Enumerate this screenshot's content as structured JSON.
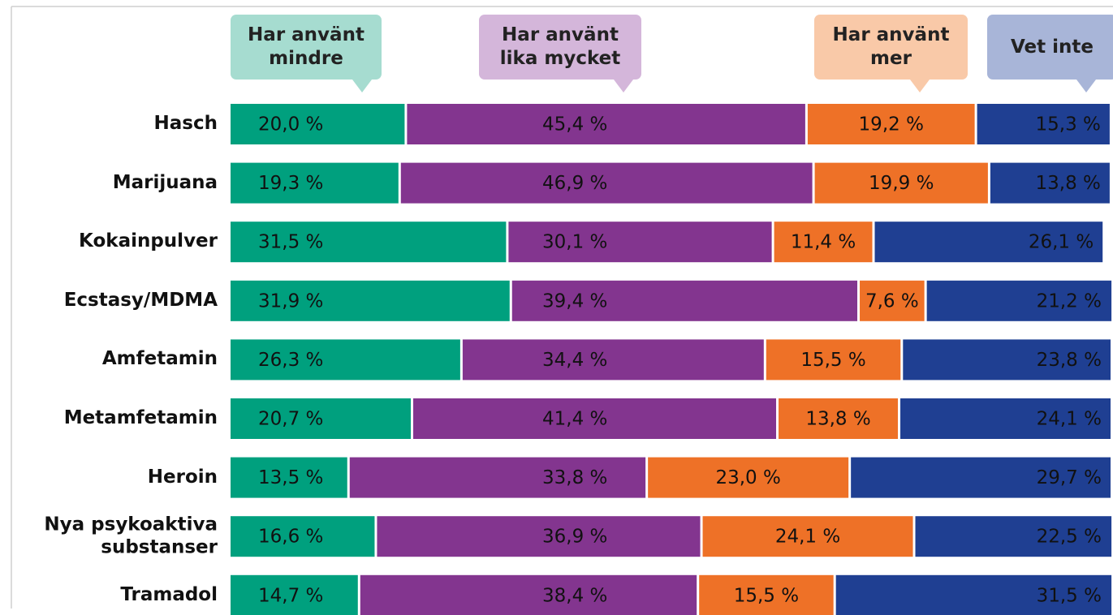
{
  "chart_data": {
    "type": "stacked-bar-horizontal",
    "categories": [
      "Hasch",
      "Marijuana",
      "Kokainpulver",
      "Ecstasy/MDMA",
      "Amfetamin",
      "Metamfetamin",
      "Heroin",
      "Nya psykoaktiva substanser",
      "Tramadol"
    ],
    "xlim": [
      0,
      100
    ],
    "series": [
      {
        "name": "Har använt mindre",
        "color": "#00a07e",
        "legend_color": "#a6dcd0",
        "values": [
          20.0,
          19.3,
          31.5,
          31.9,
          26.3,
          20.7,
          13.5,
          16.6,
          14.7
        ],
        "value_labels": [
          "20,0 %",
          "19,3 %",
          "31,5 %",
          "31,9 %",
          "26,3 %",
          "20,7 %",
          "13,5 %",
          "16,6 %",
          "14,7 %"
        ]
      },
      {
        "name": "Har använt lika mycket",
        "color": "#83358f",
        "legend_color": "#d4b6da",
        "values": [
          45.4,
          46.9,
          30.1,
          39.4,
          34.4,
          41.4,
          33.8,
          36.9,
          38.4
        ],
        "value_labels": [
          "45,4 %",
          "46,9 %",
          "30,1 %",
          "39,4 %",
          "34,4 %",
          "41,4 %",
          "33,8 %",
          "36,9 %",
          "38,4 %"
        ]
      },
      {
        "name": "Har använt mer",
        "color": "#ee7127",
        "legend_color": "#f9c9a8",
        "values": [
          19.2,
          19.9,
          11.4,
          7.6,
          15.5,
          13.8,
          23.0,
          24.1,
          15.5
        ],
        "value_labels": [
          "19,2 %",
          "19,9 %",
          "11,4 %",
          "7,6 %",
          "15,5 %",
          "13,8 %",
          "23,0 %",
          "24,1 %",
          "15,5 %"
        ]
      },
      {
        "name": "Vet inte",
        "color": "#1f3f92",
        "legend_color": "#a8b5d8",
        "values": [
          15.3,
          13.8,
          26.1,
          21.2,
          23.8,
          24.1,
          29.7,
          22.5,
          31.5
        ],
        "value_labels": [
          "15,3 %",
          "13,8 %",
          "26,1 %",
          "21,2 %",
          "23,8 %",
          "24,1 %",
          "29,7 %",
          "22,5 %",
          "31,5 %"
        ]
      }
    ]
  }
}
